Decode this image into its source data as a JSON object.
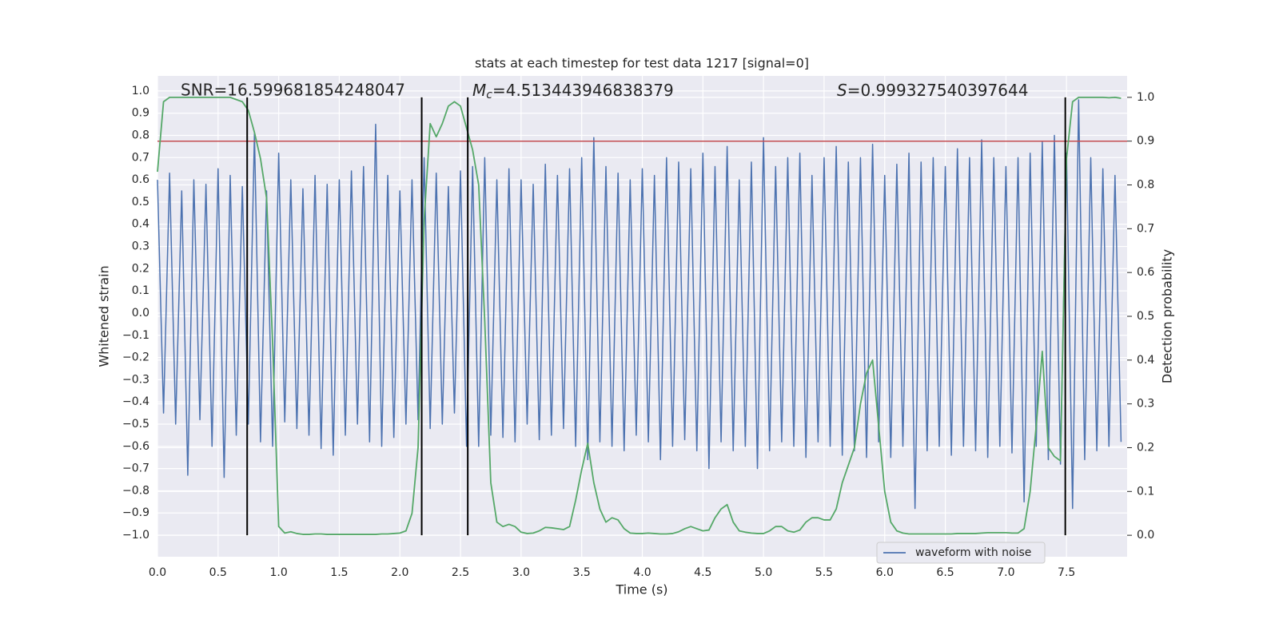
{
  "chart_data": {
    "type": "line",
    "title": "stats at each timestep for test data 1217 [signal=0]",
    "xlabel": "Time (s)",
    "ylabel": "Whitened strain",
    "y2label": "Detection probability",
    "xlim": [
      0,
      8
    ],
    "ylim": [
      -1.097,
      1.068
    ],
    "y2lim": [
      -0.049,
      1.049
    ],
    "xticks": [
      {
        "value": 0,
        "label": "0.0"
      },
      0.5,
      {
        "value": 1,
        "label": "1.0"
      },
      1.5,
      {
        "value": 2,
        "label": "2.0"
      },
      2.5,
      {
        "value": 3,
        "label": "3.0"
      },
      3.5,
      {
        "value": 4,
        "label": "4.0"
      },
      4.5,
      {
        "value": 5,
        "label": "5.0"
      },
      5.5,
      {
        "value": 6,
        "label": "6.0"
      },
      6.5,
      {
        "value": 7,
        "label": "7.0"
      },
      7.5
    ],
    "yticks": [
      {
        "value": -1,
        "label": "−1.0"
      },
      {
        "value": -0.9,
        "label": "−0.9"
      },
      {
        "value": -0.8,
        "label": "−0.8"
      },
      {
        "value": -0.7,
        "label": "−0.7"
      },
      {
        "value": -0.6,
        "label": "−0.6"
      },
      {
        "value": -0.5,
        "label": "−0.5"
      },
      {
        "value": -0.4,
        "label": "−0.4"
      },
      {
        "value": -0.3,
        "label": "−0.3"
      },
      {
        "value": -0.2,
        "label": "−0.2"
      },
      {
        "value": -0.1,
        "label": "−0.1"
      },
      {
        "value": 0,
        "label": "0.0"
      },
      0.1,
      0.2,
      0.3,
      0.4,
      0.5,
      0.6,
      0.7,
      0.8,
      0.9,
      {
        "value": 1,
        "label": "1.0"
      }
    ],
    "y2ticks": [
      {
        "value": 0,
        "label": "0.0"
      },
      0.1,
      0.2,
      0.3,
      0.4,
      0.5,
      0.6,
      0.7,
      0.8,
      0.9,
      {
        "value": 1,
        "label": "1.0"
      }
    ],
    "grid": true,
    "legend_position": "lower right",
    "x": [
      0,
      0.05,
      0.1,
      0.15,
      0.2,
      0.25,
      0.3,
      0.35,
      0.4,
      0.45,
      0.5,
      0.55,
      0.6,
      0.65,
      0.7,
      0.75,
      0.8,
      0.85,
      0.9,
      0.95,
      1,
      1.05,
      1.1,
      1.15,
      1.2,
      1.25,
      1.3,
      1.35,
      1.4,
      1.45,
      1.5,
      1.55,
      1.6,
      1.65,
      1.7,
      1.75,
      1.8,
      1.85,
      1.9,
      1.95,
      2,
      2.05,
      2.1,
      2.15,
      2.2,
      2.25,
      2.3,
      2.35,
      2.4,
      2.45,
      2.5,
      2.55,
      2.6,
      2.65,
      2.7,
      2.75,
      2.8,
      2.85,
      2.9,
      2.95,
      3,
      3.05,
      3.1,
      3.15,
      3.2,
      3.25,
      3.3,
      3.35,
      3.4,
      3.45,
      3.5,
      3.55,
      3.6,
      3.65,
      3.7,
      3.75,
      3.8,
      3.85,
      3.9,
      3.95,
      4,
      4.05,
      4.1,
      4.15,
      4.2,
      4.25,
      4.3,
      4.35,
      4.4,
      4.45,
      4.5,
      4.55,
      4.6,
      4.65,
      4.7,
      4.75,
      4.8,
      4.85,
      4.9,
      4.95,
      5,
      5.05,
      5.1,
      5.15,
      5.2,
      5.25,
      5.3,
      5.35,
      5.4,
      5.45,
      5.5,
      5.55,
      5.6,
      5.65,
      5.7,
      5.75,
      5.8,
      5.85,
      5.9,
      5.95,
      6,
      6.05,
      6.1,
      6.15,
      6.2,
      6.25,
      6.3,
      6.35,
      6.4,
      6.45,
      6.5,
      6.55,
      6.6,
      6.65,
      6.7,
      6.75,
      6.8,
      6.85,
      6.9,
      6.95,
      7,
      7.05,
      7.1,
      7.15,
      7.2,
      7.25,
      7.3,
      7.35,
      7.4,
      7.45,
      7.5,
      7.55,
      7.6,
      7.65,
      7.7,
      7.75,
      7.8,
      7.85,
      7.9,
      7.95
    ],
    "series": [
      {
        "name": "waveform with noise",
        "color": "#4c72b0",
        "values": [
          0.6,
          -0.45,
          0.63,
          -0.5,
          0.55,
          -0.73,
          0.6,
          -0.48,
          0.58,
          -0.6,
          0.65,
          -0.74,
          0.62,
          -0.55,
          0.57,
          -0.5,
          0.81,
          -0.58,
          0.55,
          -0.6,
          0.72,
          -0.49,
          0.6,
          -0.52,
          0.56,
          -0.55,
          0.62,
          -0.61,
          0.58,
          -0.64,
          0.6,
          -0.55,
          0.64,
          -0.5,
          0.66,
          -0.58,
          0.85,
          -0.6,
          0.62,
          -0.56,
          0.55,
          -0.5,
          0.6,
          -0.48,
          0.7,
          -0.52,
          0.63,
          -0.5,
          0.57,
          -0.45,
          0.64,
          -0.6,
          0.66,
          -0.6,
          0.7,
          -0.55,
          0.6,
          -0.56,
          0.65,
          -0.58,
          0.6,
          -0.5,
          0.58,
          -0.57,
          0.67,
          -0.55,
          0.62,
          -0.52,
          0.65,
          -0.6,
          0.7,
          -0.66,
          0.79,
          -0.58,
          0.66,
          -0.6,
          0.63,
          -0.62,
          0.6,
          -0.55,
          0.65,
          -0.58,
          0.62,
          -0.66,
          0.7,
          -0.6,
          0.68,
          -0.57,
          0.65,
          -0.62,
          0.72,
          -0.7,
          0.66,
          -0.58,
          0.75,
          -0.62,
          0.6,
          -0.6,
          0.68,
          -0.7,
          0.79,
          -0.62,
          0.66,
          -0.58,
          0.7,
          -0.6,
          0.72,
          -0.65,
          0.62,
          -0.58,
          0.7,
          -0.6,
          0.75,
          -0.64,
          0.68,
          -0.62,
          0.7,
          -0.65,
          0.76,
          -0.58,
          0.62,
          -0.65,
          0.67,
          -0.6,
          0.72,
          -0.88,
          0.68,
          -0.62,
          0.7,
          -0.6,
          0.66,
          -0.64,
          0.74,
          -0.6,
          0.7,
          -0.62,
          0.78,
          -0.65,
          0.7,
          -0.6,
          0.66,
          -0.63,
          0.7,
          -0.85,
          0.72,
          -0.6,
          0.77,
          -0.66,
          0.8,
          -0.68,
          0.72,
          -0.88,
          0.96,
          -0.66,
          0.7,
          -0.62,
          0.65,
          -0.6,
          0.62,
          -0.58
        ]
      },
      {
        "axis": "y2",
        "color": "#55a868",
        "values": [
          0.83,
          0.99,
          1.0,
          1.0,
          1.0,
          1.0,
          1.0,
          1.0,
          1.0,
          1.0,
          1.0,
          1.0,
          1.0,
          0.995,
          0.99,
          0.97,
          0.92,
          0.86,
          0.77,
          0.44,
          0.02,
          0.005,
          0.008,
          0.004,
          0.002,
          0.002,
          0.003,
          0.003,
          0.002,
          0.002,
          0.002,
          0.002,
          0.002,
          0.002,
          0.002,
          0.002,
          0.002,
          0.003,
          0.003,
          0.004,
          0.005,
          0.01,
          0.05,
          0.2,
          0.72,
          0.94,
          0.91,
          0.94,
          0.98,
          0.99,
          0.98,
          0.93,
          0.88,
          0.8,
          0.49,
          0.12,
          0.03,
          0.02,
          0.025,
          0.02,
          0.007,
          0.004,
          0.005,
          0.01,
          0.018,
          0.017,
          0.015,
          0.013,
          0.02,
          0.08,
          0.15,
          0.21,
          0.12,
          0.06,
          0.03,
          0.04,
          0.035,
          0.015,
          0.005,
          0.004,
          0.004,
          0.005,
          0.004,
          0.003,
          0.003,
          0.004,
          0.008,
          0.015,
          0.02,
          0.015,
          0.01,
          0.012,
          0.04,
          0.06,
          0.07,
          0.03,
          0.01,
          0.007,
          0.005,
          0.004,
          0.004,
          0.01,
          0.02,
          0.02,
          0.01,
          0.007,
          0.012,
          0.03,
          0.04,
          0.04,
          0.035,
          0.035,
          0.06,
          0.12,
          0.16,
          0.2,
          0.3,
          0.37,
          0.4,
          0.25,
          0.1,
          0.03,
          0.01,
          0.005,
          0.003,
          0.003,
          0.003,
          0.003,
          0.003,
          0.003,
          0.003,
          0.003,
          0.004,
          0.004,
          0.004,
          0.004,
          0.005,
          0.006,
          0.006,
          0.006,
          0.006,
          0.005,
          0.005,
          0.015,
          0.1,
          0.25,
          0.42,
          0.2,
          0.18,
          0.17,
          0.86,
          0.99,
          1.0,
          1.0,
          1.0,
          1.0,
          1.0,
          0.999,
          1.0,
          0.998
        ]
      }
    ],
    "hline": {
      "y": 0.9,
      "axis": "y2",
      "color": "#c44e52"
    },
    "vlines": {
      "x": [
        0.74,
        2.18,
        2.56,
        7.49
      ],
      "color": "#000000"
    },
    "annotations": [
      {
        "text": "SNR=16.599681854248047"
      },
      {
        "symbol": "M",
        "subscript": "c",
        "text": "=4.513443946838379"
      },
      {
        "symbol": "S",
        "text": "=0.999327540397644"
      }
    ]
  }
}
